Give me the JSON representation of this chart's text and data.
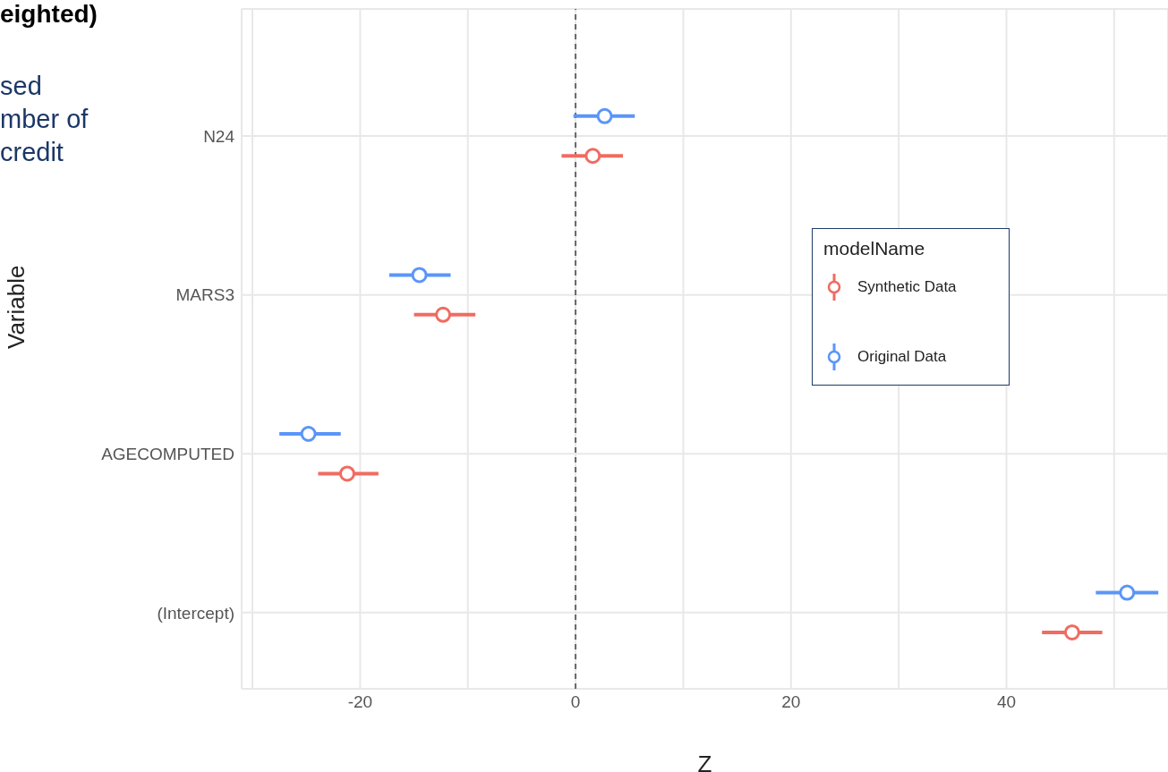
{
  "chart_data": {
    "type": "scatter",
    "orientation": "horizontal",
    "title": "eighted)",
    "annotations": [
      "sed",
      "mber of",
      "credit"
    ],
    "xlabel": "Z",
    "ylabel": "Variable",
    "legend_title": "modelName",
    "categories": [
      "N24",
      "MARS3",
      "AGECOMPUTED",
      "(Intercept)"
    ],
    "series": [
      {
        "name": "Synthetic Data",
        "color": "#f06b61",
        "values": [
          1.6,
          -12.3,
          -21.2,
          46.1
        ],
        "errors": [
          [
            -1.3,
            4.4
          ],
          [
            -15,
            -9.3
          ],
          [
            -23.9,
            -18.3
          ],
          [
            43.3,
            48.9
          ]
        ]
      },
      {
        "name": "Original Data",
        "color": "#5b95f9",
        "values": [
          2.7,
          -14.5,
          -24.8,
          51.2
        ],
        "errors": [
          [
            -0.2,
            5.5
          ],
          [
            -17.3,
            -11.6
          ],
          [
            -27.5,
            -21.8
          ],
          [
            48.3,
            54.1
          ]
        ]
      }
    ],
    "xlim": [
      -31,
      55
    ],
    "xticks": [
      {
        "value": -30,
        "label": null
      },
      -20,
      {
        "value": -10,
        "label": null
      },
      0,
      {
        "value": 10,
        "label": null
      },
      20,
      {
        "value": 30,
        "label": null
      },
      40,
      {
        "value": 50,
        "label": null
      }
    ],
    "ref_lines": [
      {
        "axis": "x",
        "value": 0,
        "color": "#666666",
        "line_style": "dashed"
      }
    ],
    "grid": true,
    "legend": "right",
    "marker": "circle"
  }
}
